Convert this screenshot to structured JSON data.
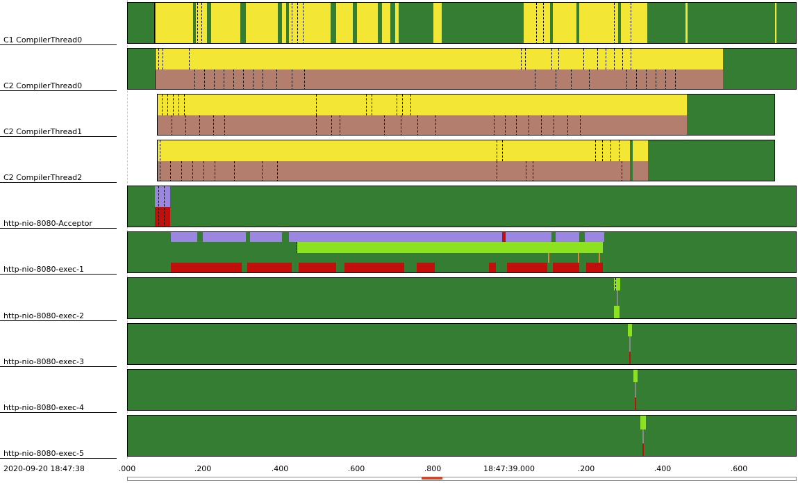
{
  "colors": {
    "green": "#347d32",
    "yellow": "#f3e635",
    "brown": "#b37e6d",
    "purple": "#9b86e2",
    "lime": "#8ce221",
    "red": "#c30f0b",
    "orange": "#e08a2a"
  },
  "timeline": {
    "start_label": "2020-09-20 18:47:38",
    "ticks": [
      ".000",
      ".200",
      ".400",
      ".600",
      ".800",
      "18:47:39.000",
      ".200",
      ".400",
      ".600"
    ]
  },
  "lanes": [
    {
      "name": "C1 CompilerThread0"
    },
    {
      "name": "C2 CompilerThread0"
    },
    {
      "name": "C2 CompilerThread1"
    },
    {
      "name": "C2 CompilerThread2"
    },
    {
      "name": "http-nio-8080-Acceptor"
    },
    {
      "name": "http-nio-8080-exec-1"
    },
    {
      "name": "http-nio-8080-exec-2"
    },
    {
      "name": "http-nio-8080-exec-3"
    },
    {
      "name": "http-nio-8080-exec-4"
    },
    {
      "name": "http-nio-8080-exec-5"
    }
  ]
}
